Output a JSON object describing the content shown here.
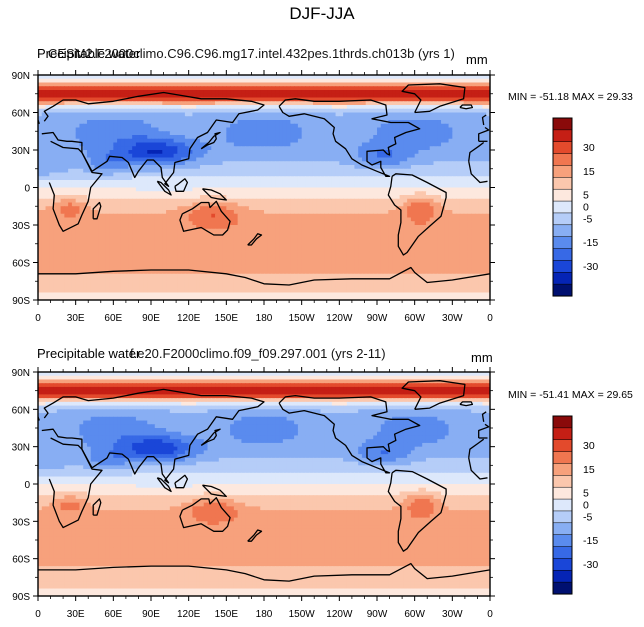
{
  "page_title": "DJF-JJA",
  "colors": {
    "levels": [
      "#001070",
      "#0524b5",
      "#1a46d8",
      "#3769e6",
      "#5a8bee",
      "#88aef3",
      "#b5cdf8",
      "#dde8fb",
      "#fde8de",
      "#fbc7ad",
      "#f7a17c",
      "#f07650",
      "#e34a2c",
      "#c51f15",
      "#8a0a0a"
    ],
    "coast": "#000000"
  },
  "colorbar_ticks": [
    "30",
    "15",
    "5",
    "0",
    "-5",
    "-15",
    "-30"
  ],
  "x_ticks": [
    "0",
    "30E",
    "60E",
    "90E",
    "120E",
    "150E",
    "180",
    "150W",
    "120W",
    "90W",
    "60W",
    "30W",
    "0"
  ],
  "y_ticks": [
    "90N",
    "60N",
    "30N",
    "0",
    "30S",
    "60S",
    "90S"
  ],
  "panels": [
    {
      "title_left": "Precipitable water",
      "title_case": "CESM2.F2000climo.C96.C96.mg17.intel.432pes.1thrds.ch013b (yrs 1)",
      "units": "mm",
      "min_max": "MIN = -51.18 MAX =  29.33"
    },
    {
      "title_left": "Precipitable water",
      "title_case": "f.e20.F2000climo.f09_f09.297.001 (yrs 2-11)",
      "units": "mm",
      "min_max": "MIN = -51.41 MAX =  29.65"
    }
  ],
  "chart_data": [
    {
      "type": "heatmap",
      "title": "DJF-JJA",
      "subtitle": "CESM2.F2000climo.C96.C96.mg17.intel.432pes.1thrds.ch013b (yrs 1)",
      "variable": "Precipitable water",
      "units": "mm",
      "min": -51.18,
      "max": 29.33,
      "x": [
        "0",
        "30E",
        "60E",
        "90E",
        "120E",
        "150E",
        "180",
        "150W",
        "120W",
        "90W",
        "60W",
        "30W",
        "0"
      ],
      "y": [
        "90N",
        "60N",
        "30N",
        "0",
        "30S",
        "60S",
        "90S"
      ],
      "xlim": [
        0,
        360
      ],
      "ylim": [
        -90,
        90
      ],
      "contour_levels": [
        -35,
        -30,
        -25,
        -20,
        -15,
        -10,
        -5,
        0,
        5,
        10,
        15,
        20,
        25,
        30,
        35
      ]
    },
    {
      "type": "heatmap",
      "title": "DJF-JJA",
      "subtitle": "f.e20.F2000climo.f09_f09.297.001 (yrs 2-11)",
      "variable": "Precipitable water",
      "units": "mm",
      "min": -51.41,
      "max": 29.65,
      "x": [
        "0",
        "30E",
        "60E",
        "90E",
        "120E",
        "150E",
        "180",
        "150W",
        "120W",
        "90W",
        "60W",
        "30W",
        "0"
      ],
      "y": [
        "90N",
        "60N",
        "30N",
        "0",
        "30S",
        "60S",
        "90S"
      ],
      "xlim": [
        0,
        360
      ],
      "ylim": [
        -90,
        90
      ],
      "contour_levels": [
        -35,
        -30,
        -25,
        -20,
        -15,
        -10,
        -5,
        0,
        5,
        10,
        15,
        20,
        25,
        30,
        35
      ]
    }
  ]
}
